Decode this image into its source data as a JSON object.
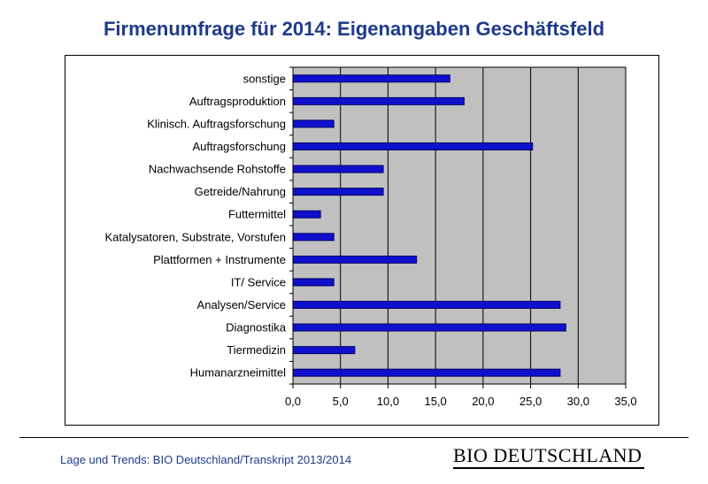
{
  "title": "Firmenumfrage für 2014: Eigenangaben Geschäftsfeld",
  "colors": {
    "title": "#1f3a8a",
    "footer": "#1f3a8a",
    "bar": "#1010cc",
    "bar_border": "#000066",
    "plot_bg": "#c0c0c0",
    "grid": "#000000"
  },
  "chart_data": {
    "type": "bar",
    "orientation": "horizontal",
    "title": "Firmenumfrage für 2014: Eigenangaben Geschäftsfeld",
    "xlabel": "",
    "ylabel": "",
    "xlim": [
      0,
      35
    ],
    "xticks": [
      "0,0",
      "5,0",
      "10,0",
      "15,0",
      "20,0",
      "25,0",
      "30,0",
      "35,0"
    ],
    "grid": true,
    "categories": [
      "sonstige",
      "Auftragsproduktion",
      "Klinisch. Auftragsforschung",
      "Auftragsforschung",
      "Nachwachsende Rohstoffe",
      "Getreide/Nahrung",
      "Futtermittel",
      "Katalysatoren, Substrate, Vorstufen",
      "Plattformen + Instrumente",
      "IT/ Service",
      "Analysen/Service",
      "Diagnostika",
      "Tiermedizin",
      "Humanarzneimittel"
    ],
    "values": [
      16.5,
      18.0,
      4.3,
      25.2,
      9.5,
      9.5,
      2.9,
      4.3,
      13.0,
      4.3,
      28.1,
      28.7,
      6.5,
      28.1
    ]
  },
  "footer": {
    "source": "Lage und Trends: BIO Deutschland/Transkript 2013/2014",
    "logo": "BIO DEUTSCHLAND"
  }
}
